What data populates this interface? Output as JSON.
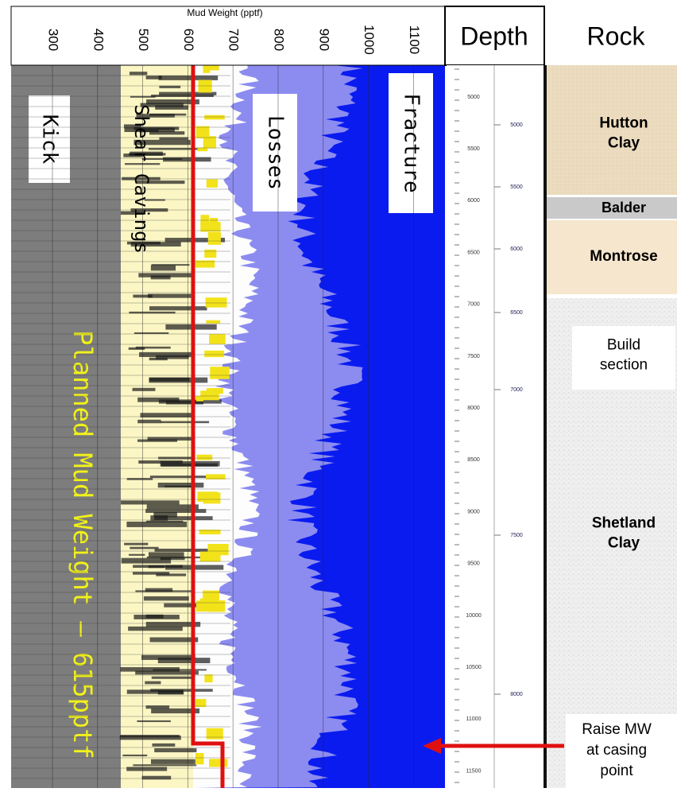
{
  "header": {
    "axis_title": "Mud Weight (pptf)",
    "ticks": [
      "300",
      "400",
      "500",
      "600",
      "700",
      "800",
      "900",
      "1000",
      "1100"
    ],
    "depth": "Depth",
    "rock": "Rock"
  },
  "zones": {
    "kick": "Kick",
    "shear": "Shear Cavings",
    "losses": "Losses",
    "fracture": "Fracture",
    "planned": "Planned Mud Weight – 615pptf"
  },
  "depth_scale": {
    "md": [
      "5000",
      "5500",
      "6000",
      "6500",
      "7000",
      "7500",
      "8000",
      "8500",
      "9000",
      "9500",
      "10000",
      "10500",
      "11000",
      "11500"
    ],
    "tvd": [
      "5000",
      "5500",
      "6000",
      "6500",
      "7000",
      "7500",
      "8000"
    ]
  },
  "rock": {
    "formations": [
      "Hutton Clay",
      "Balder",
      "Montrose",
      "Build section",
      "Shetland Clay"
    ],
    "note": "Raise MW at casing point"
  }
}
